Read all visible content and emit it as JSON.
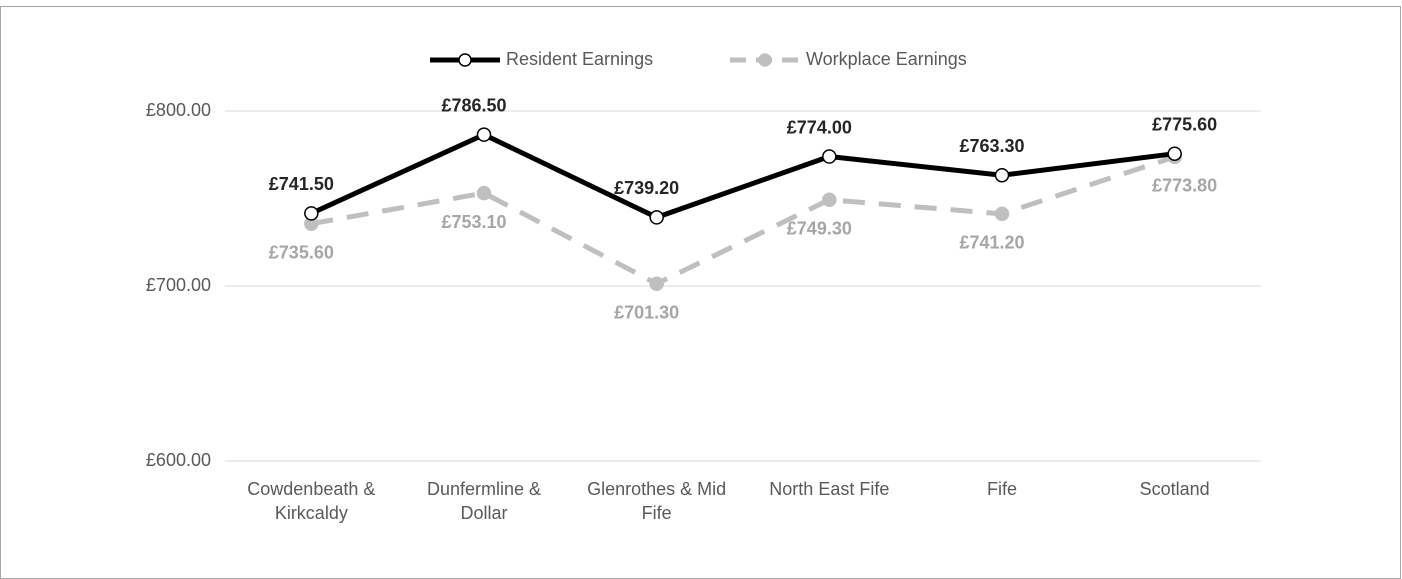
{
  "chart_data": {
    "type": "line",
    "categories": [
      "Cowdenbeath & Kirkcaldy",
      "Dunfermline & Dollar",
      "Glenrothes & Mid Fife",
      "North East Fife",
      "Fife",
      "Scotland"
    ],
    "series": [
      {
        "name": "Resident Earnings",
        "color": "#000000",
        "dashed": false,
        "marker_fill": "#ffffff",
        "values": [
          741.5,
          786.5,
          739.2,
          774.0,
          763.3,
          775.6
        ],
        "value_labels": [
          "£741.50",
          "£786.50",
          "£739.20",
          "£774.00",
          "£763.30",
          "£775.60"
        ]
      },
      {
        "name": "Workplace Earnings",
        "color": "#bfbfbf",
        "dashed": true,
        "marker_fill": "#bfbfbf",
        "values": [
          735.6,
          753.1,
          701.3,
          749.3,
          741.2,
          773.8
        ],
        "value_labels": [
          "£735.60",
          "£753.10",
          "£701.30",
          "£749.30",
          "£741.20",
          "£773.80"
        ]
      }
    ],
    "ylim": [
      600,
      800
    ],
    "yticks": [
      {
        "value": 600,
        "label": "£600.00"
      },
      {
        "value": 700,
        "label": "£700.00"
      },
      {
        "value": 800,
        "label": "£800.00"
      }
    ],
    "grid": true,
    "legend": "top"
  }
}
